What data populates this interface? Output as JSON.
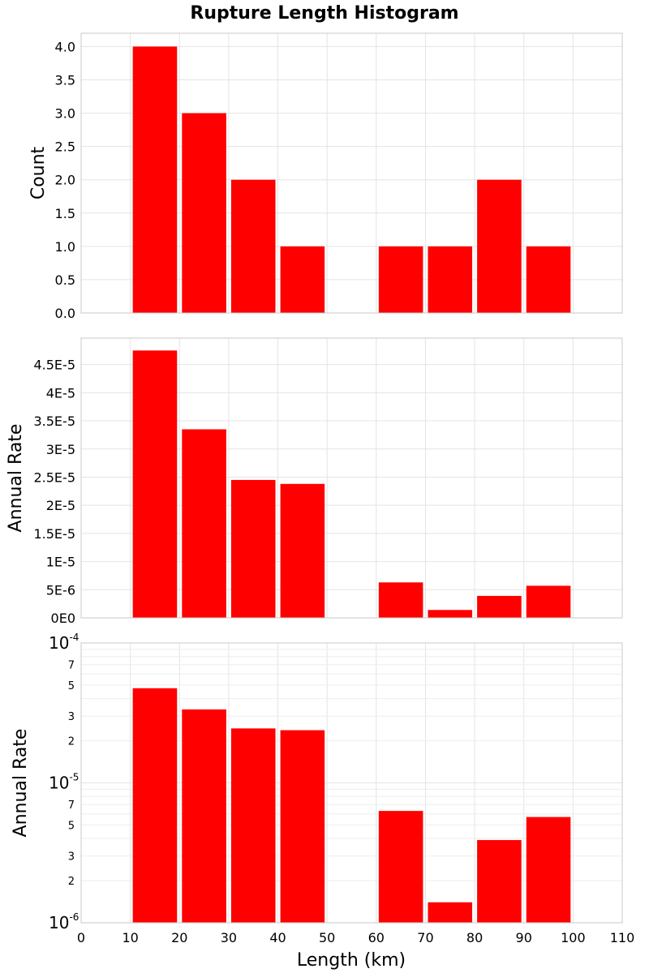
{
  "chart_data": {
    "type": "bar",
    "title": "Rupture Length Histogram",
    "xlabel": "Length (km)",
    "xlim": [
      0,
      110
    ],
    "x_ticks": [
      "0",
      "10",
      "20",
      "30",
      "40",
      "50",
      "60",
      "70",
      "80",
      "90",
      "100",
      "110"
    ],
    "bars_x": [
      15,
      25,
      35,
      45,
      65,
      75,
      85,
      95
    ],
    "bar_color": "#ff0000",
    "grid": true,
    "panels": [
      {
        "ylabel": "Count",
        "scale": "linear",
        "ylim": [
          0,
          4.2
        ],
        "y_ticks": [
          "0.0",
          "0.5",
          "1.0",
          "1.5",
          "2.0",
          "2.5",
          "3.0",
          "3.5",
          "4.0"
        ],
        "values": [
          4,
          3,
          2,
          1,
          1,
          1,
          2,
          1
        ]
      },
      {
        "ylabel": "Annual Rate",
        "scale": "linear",
        "ylim": [
          0,
          4.97e-05
        ],
        "y_ticks": [
          "0E0",
          "5E-6",
          "1E-5",
          "1.5E-5",
          "2E-5",
          "2.5E-5",
          "3E-5",
          "3.5E-5",
          "4E-5",
          "4.5E-5"
        ],
        "values": [
          4.75e-05,
          3.35e-05,
          2.45e-05,
          2.38e-05,
          6.3e-06,
          1.4e-06,
          3.9e-06,
          5.7e-06
        ]
      },
      {
        "ylabel": "Annual Rate",
        "scale": "log",
        "ylim": [
          1e-06,
          0.0001
        ],
        "y_ticks_major": [
          {
            "base": "10",
            "exp": "-6"
          },
          {
            "base": "10",
            "exp": "-5"
          },
          {
            "base": "10",
            "exp": "-4"
          }
        ],
        "y_ticks_minor": [
          "2",
          "3",
          "5",
          "7"
        ],
        "values": [
          4.75e-05,
          3.35e-05,
          2.45e-05,
          2.38e-05,
          6.3e-06,
          1.4e-06,
          3.9e-06,
          5.7e-06
        ]
      }
    ]
  }
}
